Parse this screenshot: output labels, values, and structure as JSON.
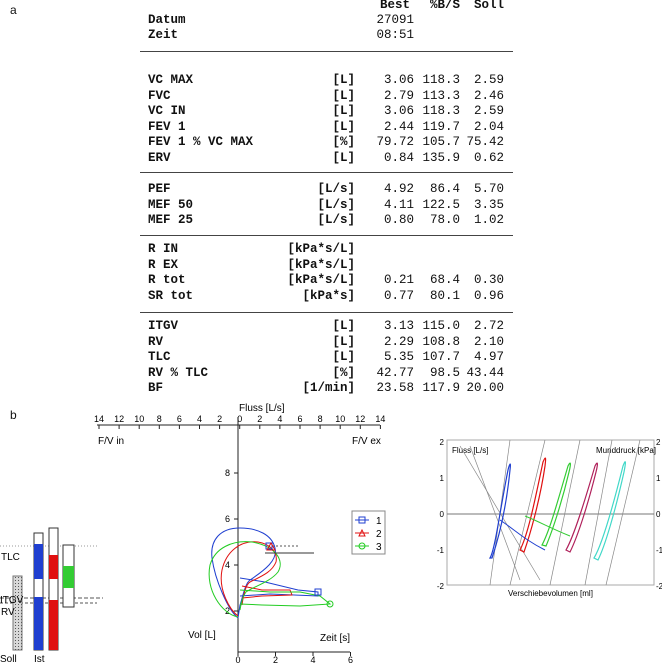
{
  "labels": {
    "a": "a",
    "b": "b"
  },
  "table": {
    "header": {
      "best": "Best",
      "pct": "%B/S",
      "soll": "Soll"
    },
    "datum": {
      "label": "Datum",
      "value": "27091"
    },
    "zeit": {
      "label": "Zeit",
      "value": "08:51"
    },
    "groups": [
      [
        {
          "name": "VC MAX",
          "unit": "[L]",
          "best": "3.06",
          "pct": "118.3",
          "soll": "2.59"
        },
        {
          "name": "FVC",
          "unit": "[L]",
          "best": "2.79",
          "pct": "113.3",
          "soll": "2.46"
        },
        {
          "name": "VC IN",
          "unit": "[L]",
          "best": "3.06",
          "pct": "118.3",
          "soll": "2.59"
        },
        {
          "name": "FEV 1",
          "unit": "[L]",
          "best": "2.44",
          "pct": "119.7",
          "soll": "2.04"
        },
        {
          "name": "FEV 1 % VC MAX",
          "unit": "[%]",
          "best": "79.72",
          "pct": "105.7",
          "soll": "75.42"
        },
        {
          "name": "ERV",
          "unit": "[L]",
          "best": "0.84",
          "pct": "135.9",
          "soll": "0.62"
        }
      ],
      [
        {
          "name": "PEF",
          "unit": "[L/s]",
          "best": "4.92",
          "pct": "86.4",
          "soll": "5.70"
        },
        {
          "name": "MEF 50",
          "unit": "[L/s]",
          "best": "4.11",
          "pct": "122.5",
          "soll": "3.35"
        },
        {
          "name": "MEF 25",
          "unit": "[L/s]",
          "best": "0.80",
          "pct": "78.0",
          "soll": "1.02"
        }
      ],
      [
        {
          "name": "R IN",
          "unit": "[kPa*s/L]",
          "best": "",
          "pct": "",
          "soll": ""
        },
        {
          "name": "R EX",
          "unit": "[kPa*s/L]",
          "best": "",
          "pct": "",
          "soll": ""
        },
        {
          "name": "R tot",
          "unit": "[kPa*s/L]",
          "best": "0.21",
          "pct": "68.4",
          "soll": "0.30"
        },
        {
          "name": "SR tot",
          "unit": "[kPa*s]",
          "best": "0.77",
          "pct": "80.1",
          "soll": "0.96"
        }
      ],
      [
        {
          "name": "ITGV",
          "unit": "[L]",
          "best": "3.13",
          "pct": "115.0",
          "soll": "2.72"
        },
        {
          "name": "RV",
          "unit": "[L]",
          "best": "2.29",
          "pct": "108.8",
          "soll": "2.10"
        },
        {
          "name": "TLC",
          "unit": "[L]",
          "best": "5.35",
          "pct": "107.7",
          "soll": "4.97"
        },
        {
          "name": "RV % TLC",
          "unit": "[%]",
          "best": "42.77",
          "pct": "98.5",
          "soll": "43.44"
        },
        {
          "name": "BF",
          "unit": "[1/min]",
          "best": "23.58",
          "pct": "117.9",
          "soll": "20.00"
        }
      ]
    ]
  },
  "bars": {
    "labels": {
      "tlc": "TLC",
      "itgv": "ITGV",
      "rv": "RV",
      "soll": "Soll",
      "ist": "Ist"
    },
    "colors": {
      "blue": "#1f3fd0",
      "red": "#e01010",
      "green": "#33cc33"
    }
  },
  "fv": {
    "title": "Fluss [L/s]",
    "left": "F/V in",
    "right": "F/V ex",
    "top_ticks": [
      "14",
      "12",
      "10",
      "8",
      "6",
      "4",
      "2",
      "0",
      "2",
      "4",
      "6",
      "8",
      "10",
      "12",
      "14"
    ],
    "vol_label": "Vol [L]",
    "vol_ticks": [
      "8",
      "6",
      "4",
      "2"
    ],
    "time_label": "Zeit [s]",
    "time_ticks": [
      "0",
      "2",
      "4",
      "6"
    ],
    "legend": [
      "1",
      "2",
      "3"
    ],
    "colors": [
      "#1f3fd0",
      "#e01010",
      "#22cc22"
    ]
  },
  "loops": {
    "fluss": "Fluss [L/s]",
    "mund": "Munddruck [kPa]",
    "xlabel": "Verschiebevolumen [ml]",
    "left_ticks": [
      "2",
      "1",
      "0",
      "-1",
      "-2"
    ],
    "right_ticks": [
      "2",
      "1",
      "0",
      "-1",
      "-2"
    ],
    "colors": [
      "#1f3fd0",
      "#e01010",
      "#33cc33",
      "#b0205a",
      "#40d8c8"
    ]
  }
}
